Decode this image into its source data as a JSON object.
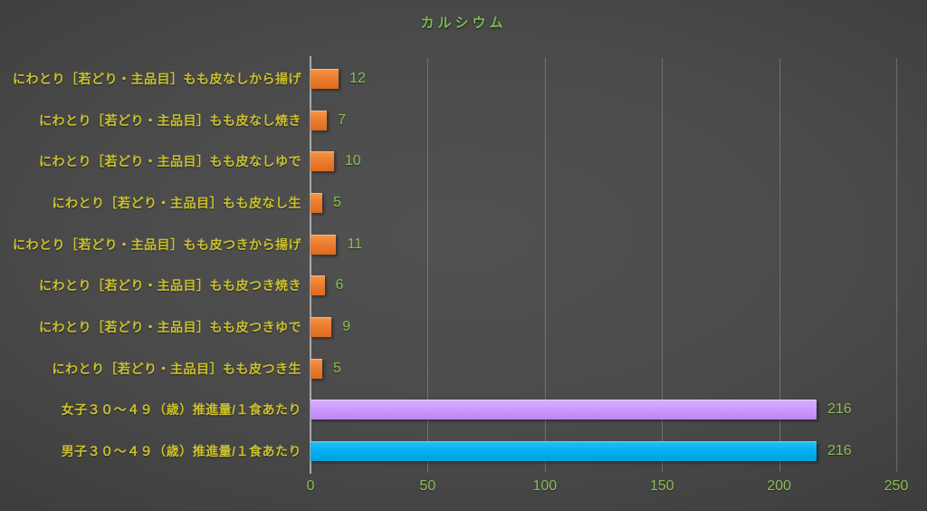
{
  "title": "カルシウム",
  "colors": {
    "title_green": "#7cbb4f",
    "value_green": "#8cbf53",
    "category_yellow": "#ccc22d",
    "bar_orange": "#ed7d31",
    "bar_purple": "#cc99ff",
    "bar_blue": "#00b0f0",
    "gridline": "rgba(255,255,255,0.22)",
    "background_center": "#525252",
    "background_edge": "#242424"
  },
  "chart_data": {
    "type": "bar",
    "orientation": "horizontal",
    "title": "カルシウム",
    "categories": [
      "にわとり［若どり・主品目］もも皮なしから揚げ",
      "にわとり［若どり・主品目］もも皮なし焼き",
      "にわとり［若どり・主品目］もも皮なしゆで",
      "にわとり［若どり・主品目］もも皮なし生",
      "にわとり［若どり・主品目］もも皮つきから揚げ",
      "にわとり［若どり・主品目］もも皮つき焼き",
      "にわとり［若どり・主品目］もも皮つきゆで",
      "にわとり［若どり・主品目］もも皮つき生",
      "女子３０～４９（歳）推進量/１食あたり",
      "男子３０～４９（歳）推進量/１食あたり"
    ],
    "values": [
      12,
      7,
      10,
      5,
      11,
      6,
      9,
      5,
      216,
      216
    ],
    "bar_colors": [
      "orange",
      "orange",
      "orange",
      "orange",
      "orange",
      "orange",
      "orange",
      "orange",
      "purple",
      "blue"
    ],
    "xlabel": "",
    "ylabel": "",
    "xlim": [
      0,
      250
    ],
    "xticks": [
      0,
      50,
      100,
      150,
      200,
      250
    ],
    "grid": "vertical",
    "legend": "none"
  }
}
